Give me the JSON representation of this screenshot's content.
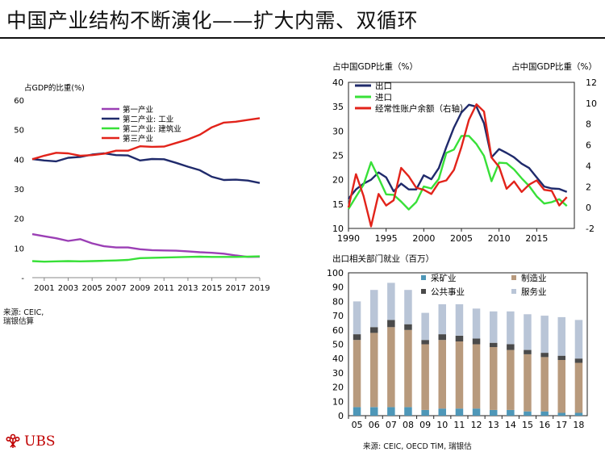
{
  "page": {
    "title": "中国产业结构不断演化——扩大内需、双循环",
    "source_left": "来源: CEIC, 瑞银估算",
    "source_bottom": "来源: CEIC, OECD TiM, 瑞银估",
    "logo": "UBS"
  },
  "colors": {
    "purple": "#9b3fb5",
    "navy": "#1f2a6b",
    "green": "#38e038",
    "red": "#e2231a",
    "teal": "#4e97b8",
    "tan": "#b89a7d",
    "darkgray": "#4a4a4a",
    "lightblue": "#b9c5d7"
  },
  "chart_data": [
    {
      "type": "line",
      "ylabel": "占GDP的比重(%)",
      "x": [
        2000,
        2001,
        2002,
        2003,
        2004,
        2005,
        2006,
        2007,
        2008,
        2009,
        2010,
        2011,
        2012,
        2013,
        2014,
        2015,
        2016,
        2017,
        2018,
        2019
      ],
      "xticks": [
        "2001",
        "2003",
        "2005",
        "2007",
        "2009",
        "2011",
        "2013",
        "2015",
        "2017",
        "2019"
      ],
      "ylim": [
        0,
        60
      ],
      "yticks": [
        "-",
        "10",
        "20",
        "30",
        "40",
        "50",
        "60"
      ],
      "legend": "top-left inside plot",
      "series": [
        {
          "name": "第一产业",
          "color": "purple",
          "values": [
            14.7,
            14.0,
            13.3,
            12.4,
            13.0,
            11.6,
            10.6,
            10.2,
            10.2,
            9.6,
            9.3,
            9.2,
            9.1,
            8.9,
            8.6,
            8.4,
            8.1,
            7.5,
            7.0,
            7.1
          ]
        },
        {
          "name": "第二产业: 工业",
          "color": "navy",
          "values": [
            40.1,
            39.6,
            39.3,
            40.5,
            40.8,
            41.6,
            42.0,
            41.4,
            41.3,
            39.6,
            40.1,
            40.0,
            38.8,
            37.5,
            36.3,
            34.1,
            33.0,
            33.1,
            32.8,
            32.0
          ]
        },
        {
          "name": "第二产业: 建筑业",
          "color": "green",
          "values": [
            5.6,
            5.4,
            5.5,
            5.6,
            5.5,
            5.6,
            5.7,
            5.8,
            6.0,
            6.6,
            6.7,
            6.8,
            6.9,
            7.0,
            7.1,
            7.0,
            7.0,
            7.0,
            7.1,
            7.2
          ]
        },
        {
          "name": "第三产业",
          "color": "red",
          "values": [
            40.0,
            41.2,
            42.2,
            42.0,
            41.2,
            41.4,
            41.9,
            42.9,
            42.9,
            44.4,
            44.2,
            44.3,
            45.5,
            46.7,
            48.3,
            50.8,
            52.4,
            52.7,
            53.3,
            53.9
          ]
        }
      ]
    },
    {
      "type": "line",
      "ylabel_left": "占中国GDP比重（%）",
      "ylabel_right": "占中国GDP比重（%）",
      "x": [
        1990,
        1991,
        1992,
        1993,
        1994,
        1995,
        1996,
        1997,
        1998,
        1999,
        2000,
        2001,
        2002,
        2003,
        2004,
        2005,
        2006,
        2007,
        2008,
        2009,
        2010,
        2011,
        2012,
        2013,
        2014,
        2015,
        2016,
        2017,
        2018,
        2019
      ],
      "xticks": [
        "1990",
        "1995",
        "2000",
        "2005",
        "2010",
        "2015"
      ],
      "ylim_left": [
        10,
        40
      ],
      "yticks_left": [
        "10",
        "15",
        "20",
        "25",
        "30",
        "35",
        "40"
      ],
      "ylim_right": [
        -2,
        12
      ],
      "yticks_right": [
        "-2",
        "0",
        "2",
        "4",
        "6",
        "8",
        "10",
        "12"
      ],
      "legend": "top-left inside plot",
      "series": [
        {
          "name": "出口",
          "axis": "left",
          "color": "navy",
          "values": [
            16.1,
            18.0,
            19.2,
            20.0,
            21.5,
            20.5,
            17.6,
            19.2,
            18.0,
            18.0,
            20.9,
            20.1,
            22.4,
            26.7,
            30.7,
            33.8,
            35.4,
            35.0,
            31.6,
            24.6,
            26.3,
            25.5,
            24.6,
            23.3,
            22.4,
            20.5,
            18.6,
            18.2,
            18.1,
            17.5
          ]
        },
        {
          "name": "进口",
          "axis": "left",
          "color": "green",
          "values": [
            14.0,
            16.5,
            19.0,
            23.6,
            20.4,
            17.0,
            16.9,
            15.5,
            13.9,
            15.4,
            18.6,
            18.2,
            20.2,
            25.5,
            26.2,
            29.0,
            29.0,
            27.3,
            24.9,
            19.7,
            23.5,
            23.4,
            22.1,
            20.3,
            18.7,
            16.6,
            15.1,
            15.4,
            16.0,
            14.6
          ]
        },
        {
          "name": "经常性账户余额（右轴）",
          "axis": "right",
          "color": "red",
          "values": [
            0.0,
            3.2,
            1.1,
            -1.8,
            1.3,
            0.2,
            0.7,
            3.8,
            3.0,
            1.9,
            1.7,
            1.3,
            2.4,
            2.6,
            3.6,
            5.8,
            8.4,
            9.9,
            9.2,
            4.8,
            3.9,
            1.8,
            2.5,
            1.5,
            2.2,
            2.6,
            1.7,
            1.6,
            0.2,
            1.0
          ]
        }
      ]
    },
    {
      "type": "bar",
      "ylabel": "出口相关部门就业（百万）",
      "categories": [
        "05",
        "06",
        "07",
        "08",
        "09",
        "10",
        "11",
        "12",
        "13",
        "14",
        "15",
        "16",
        "17",
        "18"
      ],
      "ylim": [
        0,
        100
      ],
      "yticks": [
        "0",
        "10",
        "20",
        "30",
        "40",
        "50",
        "60",
        "70",
        "80",
        "90",
        "100"
      ],
      "stacked": true,
      "legend": "top inside plot, two columns",
      "series": [
        {
          "name": "采矿业",
          "color": "teal",
          "values": [
            6,
            6,
            6,
            6,
            4,
            5,
            5,
            5,
            4,
            4,
            3,
            3,
            2,
            2
          ]
        },
        {
          "name": "制造业",
          "color": "tan",
          "values": [
            47,
            52,
            56,
            54,
            46,
            48,
            47,
            45,
            44,
            42,
            40,
            38,
            37,
            35
          ]
        },
        {
          "name": "公共事业",
          "color": "darkgray",
          "values": [
            4,
            4,
            5,
            4,
            3,
            4,
            4,
            4,
            3,
            4,
            3,
            3,
            3,
            3
          ]
        },
        {
          "name": "服务业",
          "color": "lightblue",
          "values": [
            23,
            26,
            26,
            24,
            19,
            21,
            22,
            21,
            22,
            23,
            25,
            26,
            27,
            27
          ]
        }
      ]
    }
  ]
}
